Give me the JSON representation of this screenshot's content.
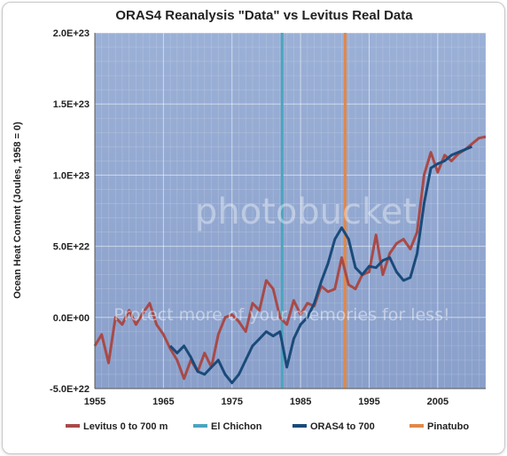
{
  "chart_data": {
    "type": "line",
    "title": "ORAS4 Reanalysis \"Data\" vs Levitus Real Data",
    "ylabel": "Ocean Heat Content (Joules, 1958 = 0)",
    "xlabel": "",
    "xlim": [
      1955,
      2012
    ],
    "ylim": [
      -5e+22,
      2e+23
    ],
    "x_ticks": [
      1955,
      1965,
      1975,
      1985,
      1995,
      2005
    ],
    "x_tick_labels": [
      "1955",
      "1965",
      "1975",
      "1985",
      "1995",
      "2005"
    ],
    "y_ticks": [
      -5e+22,
      0,
      5e+22,
      1e+23,
      1.5e+23,
      2e+23
    ],
    "y_tick_labels": [
      "-5.0E+22",
      "0.0E+00",
      "5.0E+22",
      "1.0E+23",
      "1.5E+23",
      "2.0E+23"
    ],
    "grid": true,
    "legend_position": "bottom",
    "series": [
      {
        "name": "Levitus 0 to 700 m",
        "color": "#a84a48",
        "x": [
          1955,
          1956,
          1957,
          1958,
          1959,
          1960,
          1961,
          1962,
          1963,
          1964,
          1965,
          1966,
          1967,
          1968,
          1969,
          1970,
          1971,
          1972,
          1973,
          1974,
          1975,
          1976,
          1977,
          1978,
          1979,
          1980,
          1981,
          1982,
          1983,
          1984,
          1985,
          1986,
          1987,
          1988,
          1989,
          1990,
          1991,
          1992,
          1993,
          1994,
          1995,
          1996,
          1997,
          1998,
          1999,
          2000,
          2001,
          2002,
          2003,
          2004,
          2005,
          2006,
          2007,
          2008,
          2009,
          2010,
          2011,
          2012
        ],
        "y": [
          -2e+22,
          -1.2e+22,
          -3.2e+22,
          0,
          -5e+21,
          5e+21,
          -5e+21,
          3e+21,
          1e+22,
          -5e+21,
          -1.2e+22,
          -2.2e+22,
          -3e+22,
          -4.3e+22,
          -3e+22,
          -3.8e+22,
          -2.5e+22,
          -3.5e+22,
          -1.2e+22,
          0,
          2e+21,
          -3e+21,
          -1e+22,
          1e+22,
          5e+21,
          2.6e+22,
          2e+22,
          0,
          -5e+21,
          1.2e+22,
          2e+21,
          1e+22,
          8e+21,
          2.2e+22,
          1.8e+22,
          2e+22,
          4.2e+22,
          2.3e+22,
          2e+22,
          3e+22,
          3.2e+22,
          5.8e+22,
          3e+22,
          4.5e+22,
          5.2e+22,
          5.5e+22,
          4.8e+22,
          6e+22,
          1e+23,
          1.16e+23,
          1.02e+23,
          1.14e+23,
          1.1e+23,
          1.15e+23,
          1.18e+23,
          1.22e+23,
          1.26e+23,
          1.27e+23
        ]
      },
      {
        "name": "ORAS4 to 700",
        "color": "#1a4a7a",
        "x": [
          1955,
          1956,
          1957,
          1958,
          1959,
          1960,
          1961,
          1962,
          1963,
          1964,
          1965,
          1966,
          1967,
          1968,
          1969,
          1970,
          1971,
          1972,
          1973,
          1974,
          1975,
          1976,
          1977,
          1978,
          1979,
          1980,
          1981,
          1982,
          1983,
          1984,
          1985,
          1986,
          1987,
          1988,
          1989,
          1990,
          1991,
          1992,
          1993,
          1994,
          1995,
          1996,
          1997,
          1998,
          1999,
          2000,
          2001,
          2002,
          2003,
          2004,
          2005,
          2006,
          2007,
          2008,
          2009,
          2010,
          2011,
          2012
        ],
        "y": [
          null,
          null,
          null,
          null,
          null,
          null,
          null,
          null,
          null,
          null,
          null,
          -2e+22,
          -2.5e+22,
          -2e+22,
          -2.8e+22,
          -3.8e+22,
          -4e+22,
          -3.5e+22,
          -3e+22,
          -4e+22,
          -4.6e+22,
          -4e+22,
          -3e+22,
          -2e+22,
          -1.5e+22,
          -1e+22,
          -1.3e+22,
          -1e+22,
          -3.5e+22,
          -1.5e+22,
          -5e+21,
          0,
          1e+22,
          2.5e+22,
          3.8e+22,
          5.5e+22,
          6.3e+22,
          5.5e+22,
          3.5e+22,
          3e+22,
          3.6e+22,
          3.5e+22,
          4e+22,
          4.2e+22,
          3.2e+22,
          2.6e+22,
          2.8e+22,
          4.5e+22,
          8e+22,
          1.05e+23,
          1.08e+23,
          1.1e+23,
          1.14e+23,
          1.16e+23,
          1.18e+23,
          1.2e+23,
          null,
          null
        ]
      }
    ],
    "vertical_markers": [
      {
        "name": "El Chichon",
        "x": 1982.3,
        "color": "#4aa5c0"
      },
      {
        "name": "Pinatubo",
        "x": 1991.5,
        "color": "#e0884a"
      }
    ],
    "plot_background": "#8fa6cf"
  },
  "watermark": {
    "main": "photobucket",
    "sub": "Protect more of your memories for less!"
  }
}
